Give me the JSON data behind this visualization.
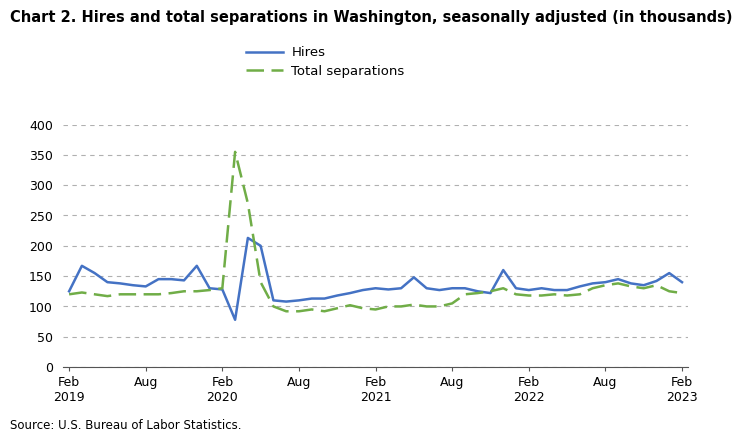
{
  "title": "Chart 2. Hires and total separations in Washington, seasonally adjusted (in thousands)",
  "source": "Source: U.S. Bureau of Labor Statistics.",
  "hires_label": "Hires",
  "separations_label": "Total separations",
  "hires_color": "#4472C4",
  "separations_color": "#70AD47",
  "ylim": [
    0,
    400
  ],
  "yticks": [
    0,
    50,
    100,
    150,
    200,
    250,
    300,
    350,
    400
  ],
  "x_tick_labels_top": [
    "Feb",
    "Aug",
    "Feb",
    "Aug",
    "Feb",
    "Aug",
    "Feb",
    "Aug",
    "Feb"
  ],
  "x_tick_labels_bot": [
    "2019",
    "",
    "2020",
    "",
    "2021",
    "",
    "2022",
    "",
    "2023"
  ],
  "x_tick_positions": [
    0,
    6,
    12,
    18,
    24,
    30,
    36,
    42,
    48
  ],
  "hires": [
    125,
    167,
    155,
    140,
    138,
    135,
    133,
    145,
    145,
    143,
    167,
    130,
    128,
    78,
    213,
    200,
    110,
    108,
    110,
    113,
    113,
    118,
    122,
    127,
    130,
    128,
    130,
    148,
    130,
    127,
    130,
    130,
    125,
    122,
    160,
    130,
    127,
    130,
    127,
    127,
    133,
    138,
    140,
    145,
    138,
    135,
    142,
    155,
    140
  ],
  "separations": [
    120,
    123,
    120,
    117,
    120,
    120,
    120,
    120,
    122,
    125,
    125,
    127,
    130,
    355,
    270,
    140,
    100,
    92,
    92,
    95,
    92,
    97,
    102,
    97,
    95,
    100,
    100,
    103,
    100,
    100,
    105,
    120,
    122,
    125,
    130,
    120,
    118,
    118,
    120,
    118,
    120,
    130,
    135,
    138,
    133,
    130,
    135,
    125,
    122
  ],
  "linewidth": 1.8,
  "grid_color": "#b0b0b0",
  "background_color": "#ffffff",
  "title_fontsize": 10.5,
  "tick_fontsize": 9
}
